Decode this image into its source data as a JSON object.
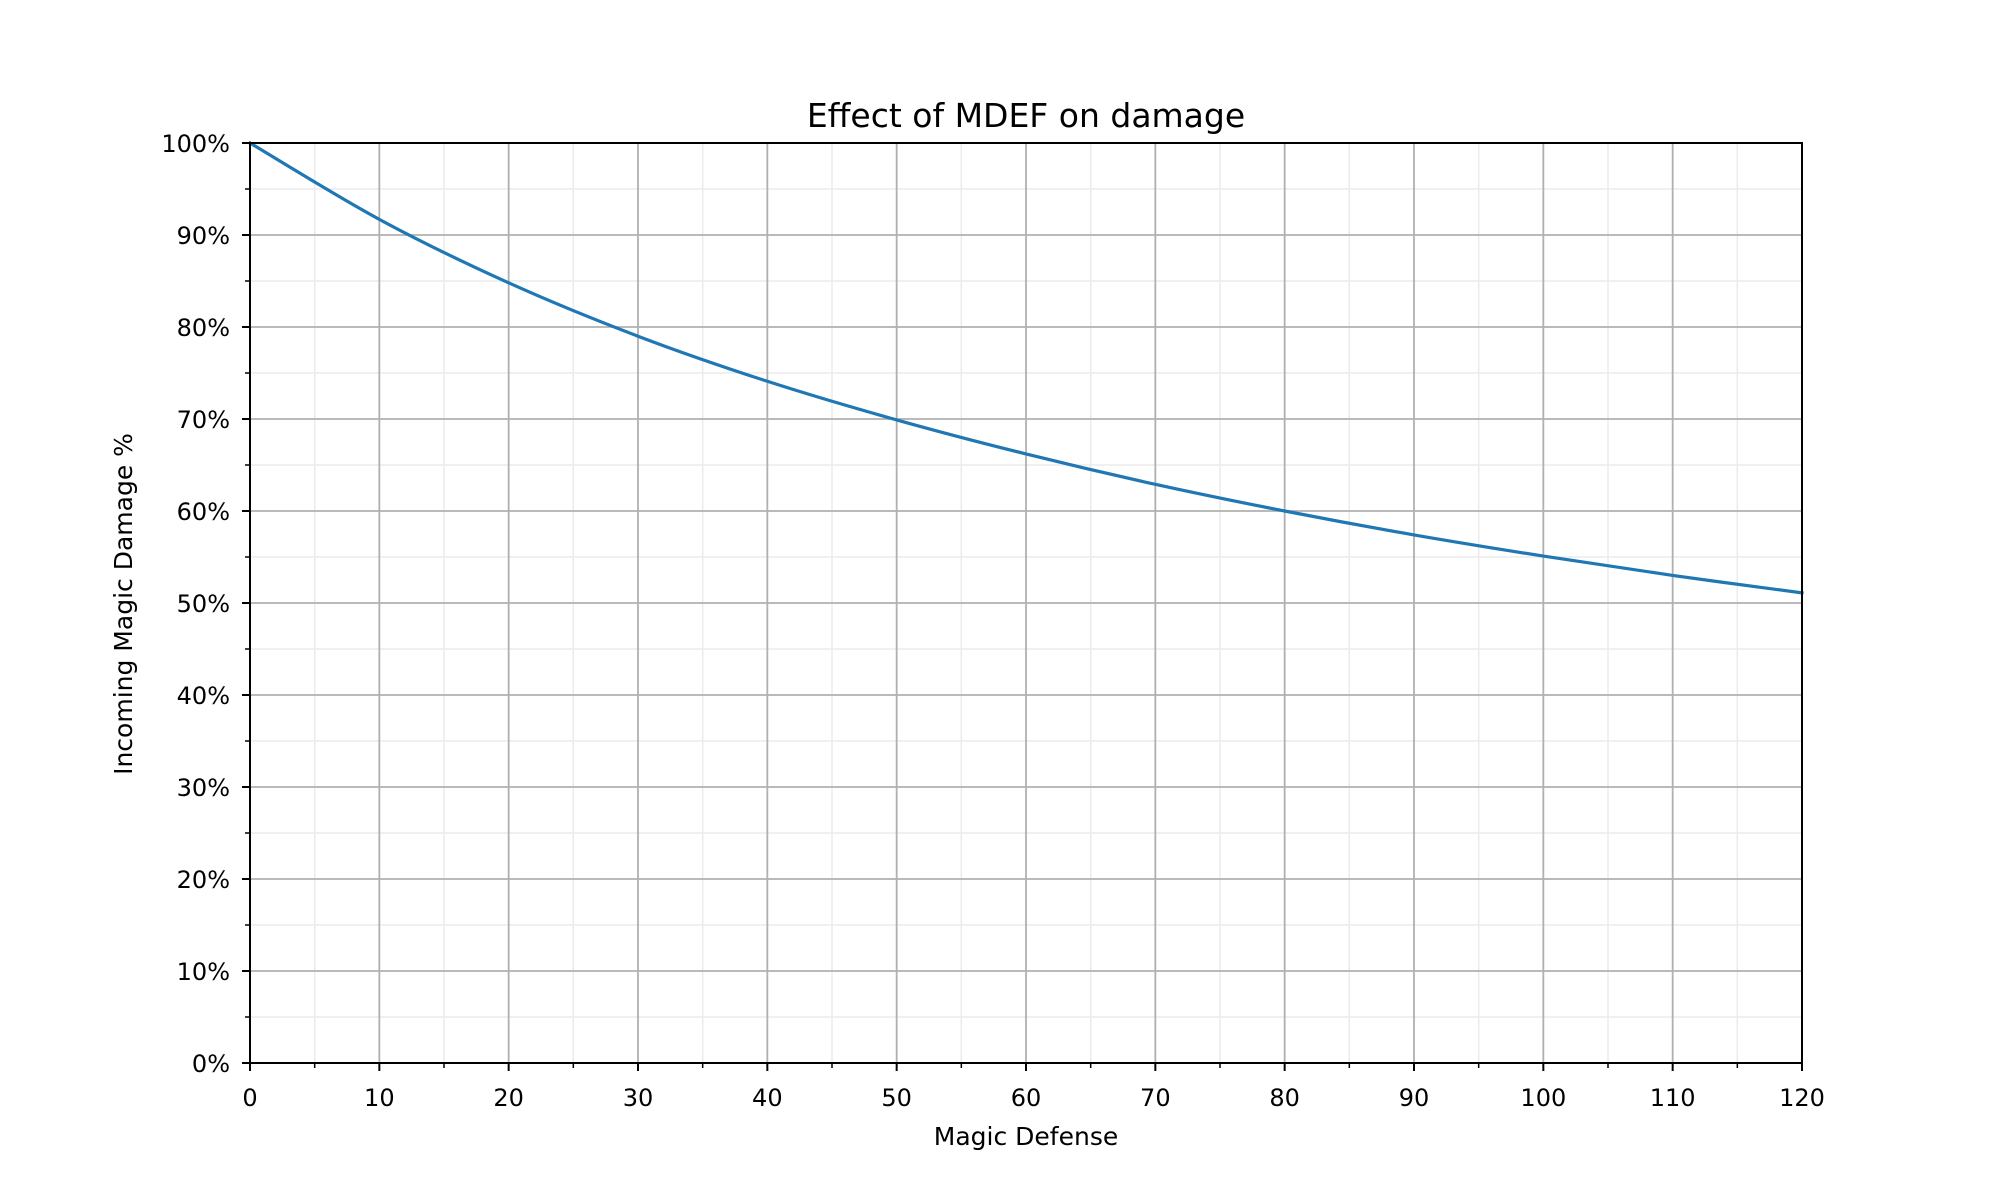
{
  "chart_data": {
    "type": "line",
    "title": "Effect of MDEF on damage",
    "xlabel": "Magic Defense",
    "ylabel": "Incoming Magic Damage %",
    "xlim": [
      0,
      120
    ],
    "ylim": [
      0,
      100
    ],
    "x_ticks": [
      0,
      10,
      20,
      30,
      40,
      50,
      60,
      70,
      80,
      90,
      100,
      110,
      120
    ],
    "x_tick_labels": [
      "0",
      "10",
      "20",
      "30",
      "40",
      "50",
      "60",
      "70",
      "80",
      "90",
      "100",
      "110",
      "120"
    ],
    "y_ticks": [
      0,
      10,
      20,
      30,
      40,
      50,
      60,
      70,
      80,
      90,
      100
    ],
    "y_tick_labels": [
      "0%",
      "10%",
      "20%",
      "30%",
      "40%",
      "50%",
      "60%",
      "70%",
      "80%",
      "90%",
      "100%"
    ],
    "x_minor_step": 5,
    "y_minor_step": 5,
    "grid": {
      "major": true,
      "minor": true
    },
    "legend": null,
    "series": [
      {
        "name": "Incoming Magic Damage %",
        "color": "#1f77b4",
        "x": [
          0,
          10,
          20,
          30,
          40,
          50,
          60,
          70,
          80,
          90,
          100,
          110,
          120
        ],
        "values": [
          100,
          91.7,
          84.8,
          79.0,
          74.1,
          69.9,
          66.2,
          62.9,
          60.0,
          57.4,
          55.1,
          53.0,
          51.1
        ]
      }
    ]
  },
  "colors": {
    "line": "#1f77b4",
    "major_grid": "#b0b0b0",
    "minor_grid": "#ebebeb",
    "axes": "#000000"
  }
}
